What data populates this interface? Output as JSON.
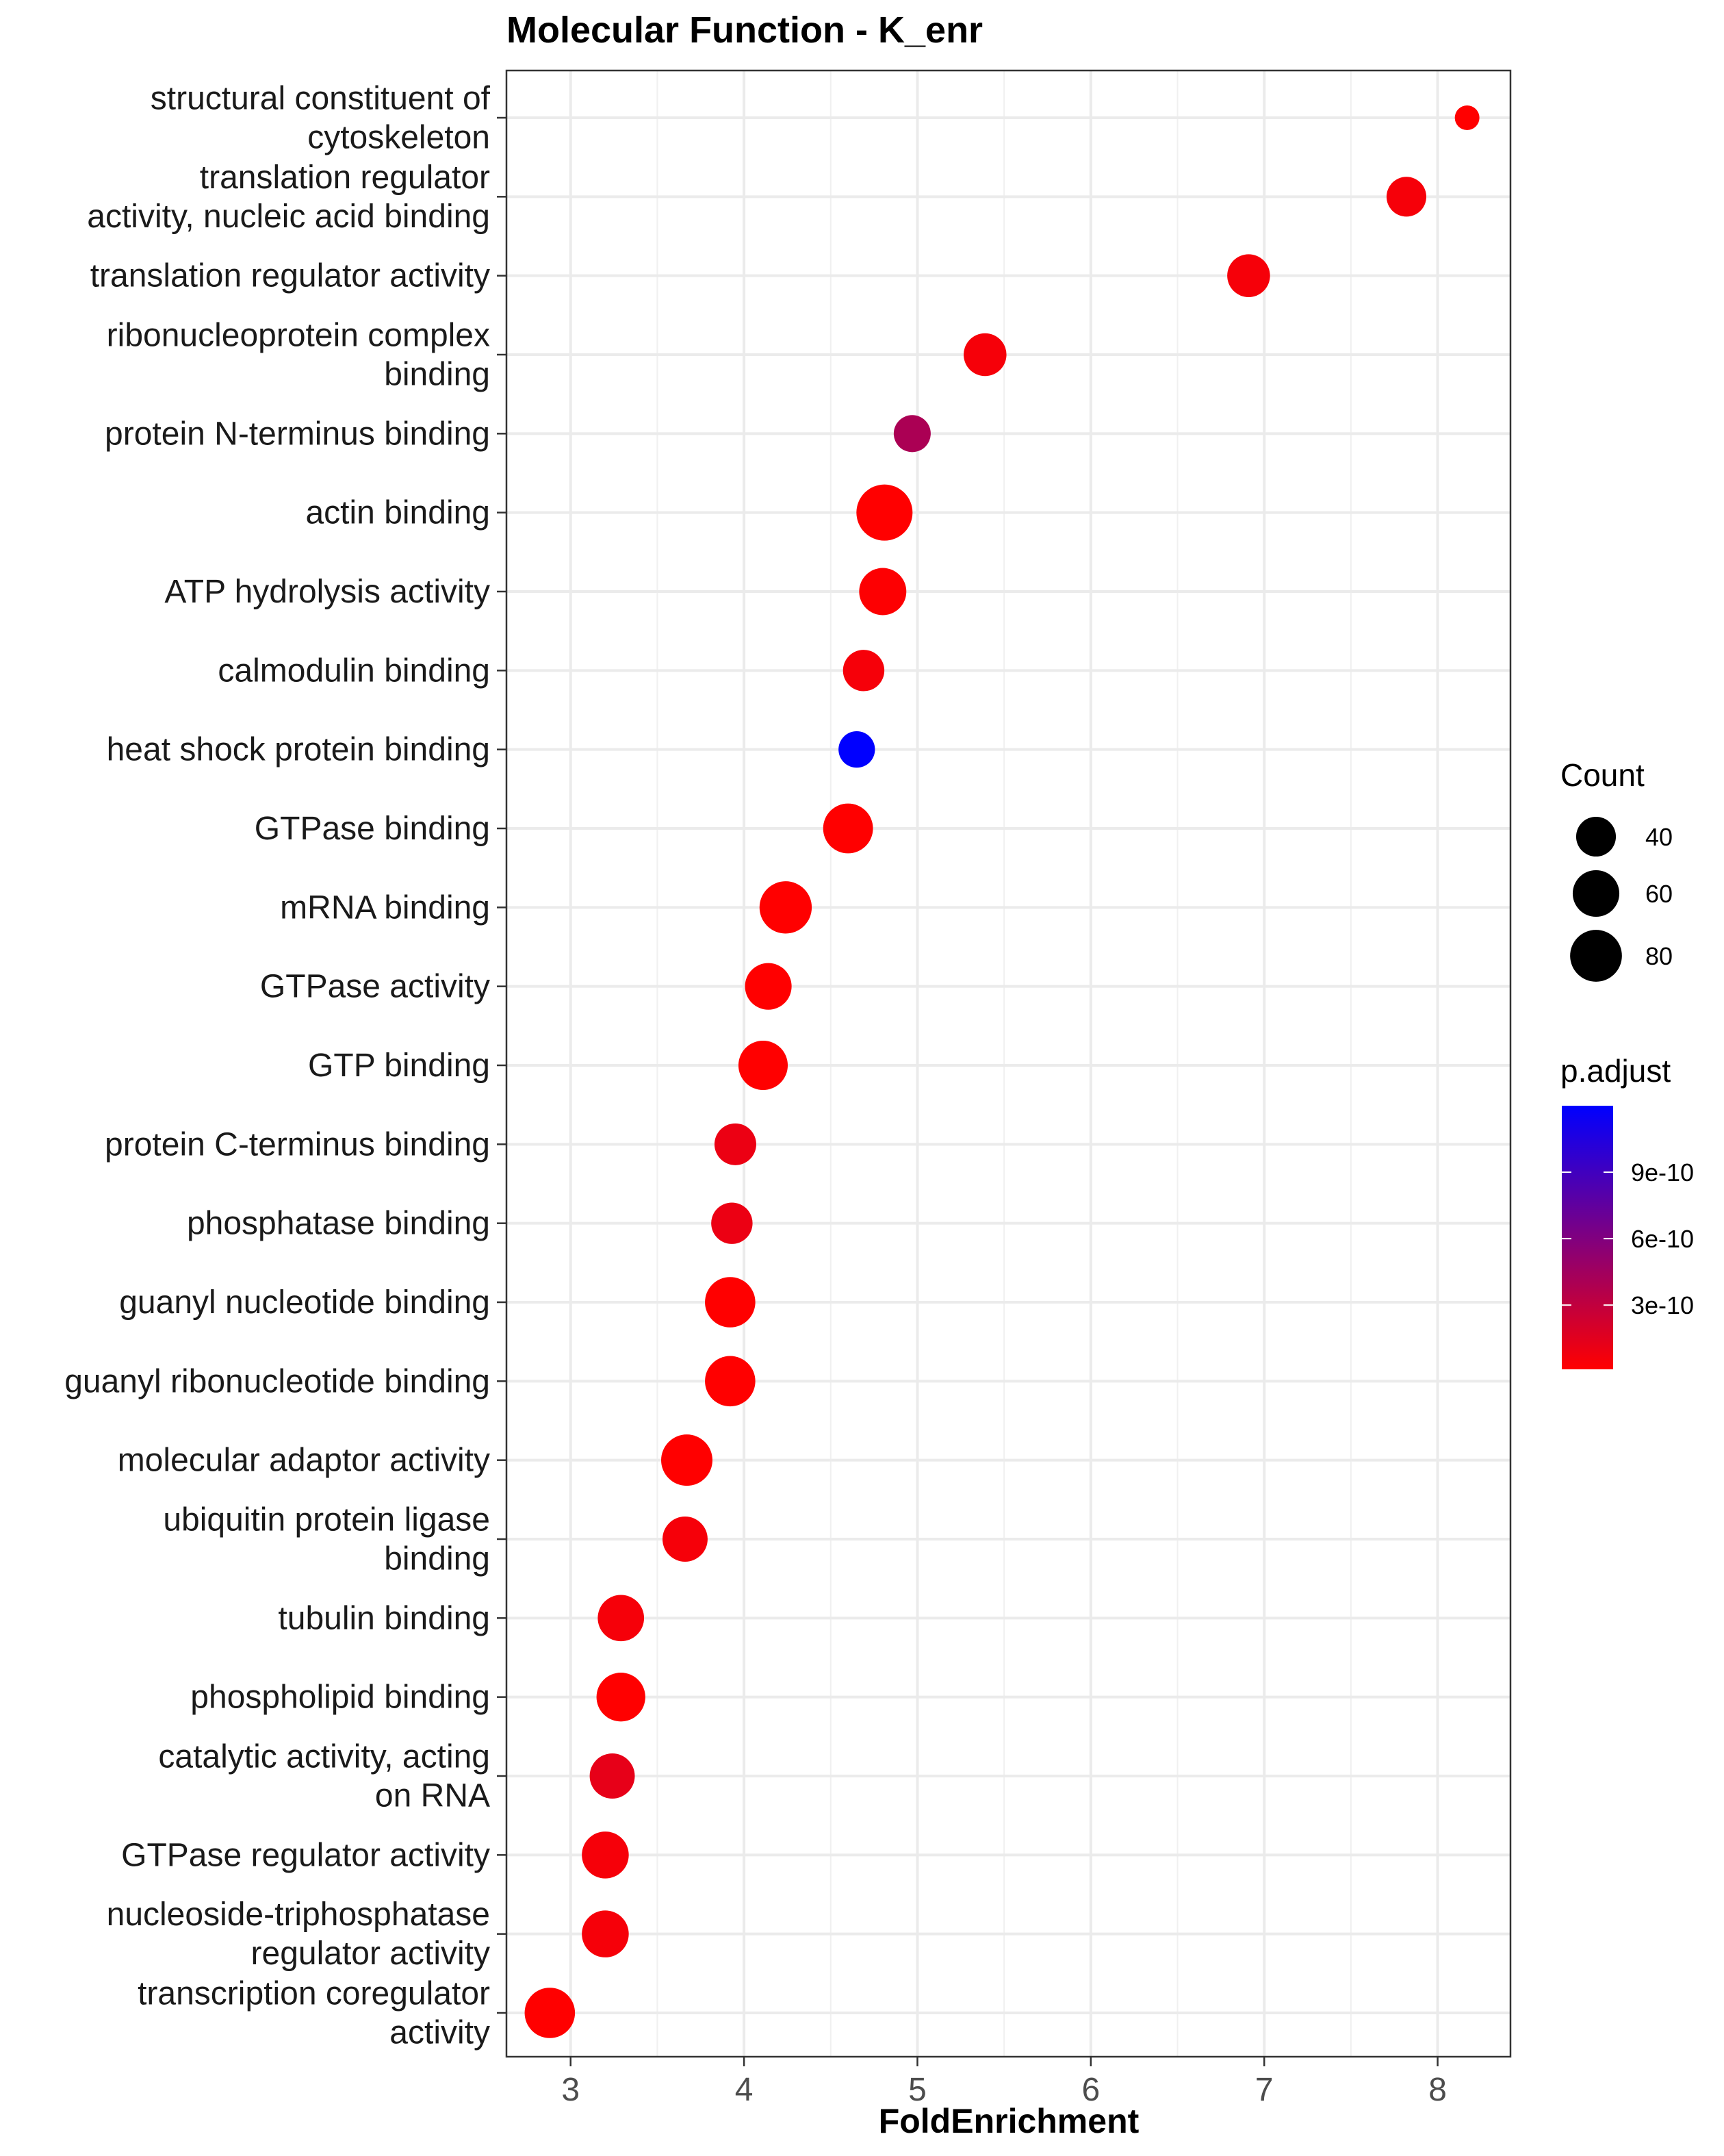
{
  "chart_data": {
    "type": "scatter",
    "title": "Molecular Function - K_enr",
    "xlabel": "FoldEnrichment",
    "ylabel": "",
    "xlim": [
      2.63,
      8.42
    ],
    "x_ticks": [
      3,
      4,
      5,
      6,
      7,
      8
    ],
    "grid": true,
    "legend_position": "right",
    "categories": [
      "structural constituent of\ncytoskeleton",
      "translation regulator\nactivity, nucleic acid binding",
      "translation regulator activity",
      "ribonucleoprotein complex\nbinding",
      "protein N-terminus binding",
      "actin binding",
      "ATP hydrolysis activity",
      "calmodulin binding",
      "heat shock protein binding",
      "GTPase binding",
      "mRNA binding",
      "GTPase activity",
      "GTP binding",
      "protein C-terminus binding",
      "phosphatase binding",
      "guanyl nucleotide binding",
      "guanyl ribonucleotide binding",
      "molecular adaptor activity",
      "ubiquitin protein ligase\nbinding",
      "tubulin binding",
      "phospholipid binding",
      "catalytic activity, acting\non RNA",
      "GTPase regulator activity",
      "nucleoside-triphosphatase\nregulator activity",
      "transcription coregulator\nactivity"
    ],
    "points": [
      {
        "x": 8.17,
        "count": 22,
        "p_adjust": 1e-11
      },
      {
        "x": 7.82,
        "count": 40,
        "p_adjust": 5e-11
      },
      {
        "x": 6.91,
        "count": 48,
        "p_adjust": 5e-11
      },
      {
        "x": 5.39,
        "count": 48,
        "p_adjust": 5e-11
      },
      {
        "x": 4.97,
        "count": 34,
        "p_adjust": 4e-10
      },
      {
        "x": 4.81,
        "count": 100,
        "p_adjust": 1e-11
      },
      {
        "x": 4.8,
        "count": 62,
        "p_adjust": 2e-11
      },
      {
        "x": 4.69,
        "count": 44,
        "p_adjust": 5e-11
      },
      {
        "x": 4.65,
        "count": 33,
        "p_adjust": 1.2e-09
      },
      {
        "x": 4.6,
        "count": 72,
        "p_adjust": 1e-11
      },
      {
        "x": 4.24,
        "count": 82,
        "p_adjust": 1e-11
      },
      {
        "x": 4.14,
        "count": 60,
        "p_adjust": 1e-11
      },
      {
        "x": 4.11,
        "count": 70,
        "p_adjust": 1e-11
      },
      {
        "x": 3.95,
        "count": 45,
        "p_adjust": 1e-10
      },
      {
        "x": 3.93,
        "count": 44,
        "p_adjust": 1e-10
      },
      {
        "x": 3.92,
        "count": 74,
        "p_adjust": 1e-11
      },
      {
        "x": 3.92,
        "count": 74,
        "p_adjust": 1e-11
      },
      {
        "x": 3.67,
        "count": 78,
        "p_adjust": 1e-11
      },
      {
        "x": 3.66,
        "count": 55,
        "p_adjust": 5e-11
      },
      {
        "x": 3.29,
        "count": 59,
        "p_adjust": 5e-11
      },
      {
        "x": 3.29,
        "count": 68,
        "p_adjust": 1e-11
      },
      {
        "x": 3.24,
        "count": 55,
        "p_adjust": 1.2e-10
      },
      {
        "x": 3.2,
        "count": 61,
        "p_adjust": 5e-11
      },
      {
        "x": 3.2,
        "count": 61,
        "p_adjust": 5e-11
      },
      {
        "x": 2.88,
        "count": 74,
        "p_adjust": 1e-11
      }
    ],
    "size_legend": {
      "title": "Count",
      "breaks": [
        40,
        60,
        80
      ],
      "labels": [
        "40",
        "60",
        "80"
      ]
    },
    "color_legend": {
      "title": "p.adjust",
      "low_color": "#ff0000",
      "high_color": "#0000ff",
      "min": 1e-11,
      "max": 1.2e-09,
      "breaks": [
        3e-10,
        6e-10,
        9e-10
      ],
      "labels": [
        "3e-10",
        "6e-10",
        "9e-10"
      ]
    },
    "count_range": [
      22,
      100
    ]
  }
}
